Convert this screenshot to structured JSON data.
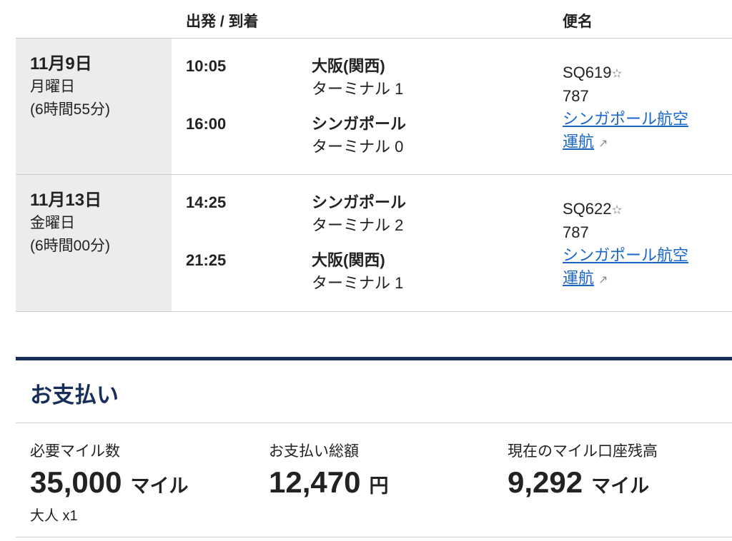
{
  "header": {
    "dep_arr": "出発 / 到着",
    "flight": "便名"
  },
  "segments": [
    {
      "date": "11月9日",
      "weekday": "月曜日",
      "duration": "(6時間55分)",
      "dep_time": "10:05",
      "dep_airport": "大阪(関西)",
      "dep_terminal": "ターミナル 1",
      "arr_time": "16:00",
      "arr_airport": "シンガポール",
      "arr_terminal": "ターミナル 0",
      "flight_no": "SQ619",
      "aircraft": "787",
      "operator_link": "シンガポール航空",
      "operated": "運航"
    },
    {
      "date": "11月13日",
      "weekday": "金曜日",
      "duration": "(6時間00分)",
      "dep_time": "14:25",
      "dep_airport": "シンガポール",
      "dep_terminal": "ターミナル 2",
      "arr_time": "21:25",
      "arr_airport": "大阪(関西)",
      "arr_terminal": "ターミナル 1",
      "flight_no": "SQ622",
      "aircraft": "787",
      "operator_link": "シンガポール航空",
      "operated": "運航"
    }
  ],
  "payment": {
    "title": "お支払い",
    "miles_label": "必要マイル数",
    "miles_value": "35,000",
    "miles_unit": "マイル",
    "passengers": "大人 x1",
    "total_label": "お支払い総額",
    "total_value": "12,470",
    "total_unit": "円",
    "balance_label": "現在のマイル口座残高",
    "balance_value": "9,292",
    "balance_unit": "マイル"
  },
  "colors": {
    "navy": "#172e5b",
    "link": "#1a66c9",
    "date_bg": "#ececec"
  }
}
